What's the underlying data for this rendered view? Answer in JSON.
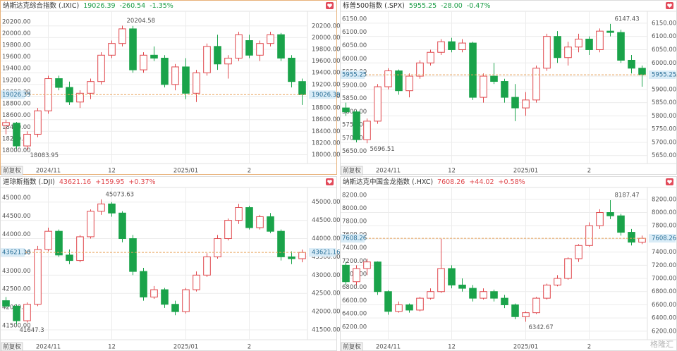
{
  "watermark": "格隆汇",
  "chart_data": [
    {
      "type": "candlestick",
      "title": "纳斯达克综合指数 (.IXIC)",
      "last_price": 19026.39,
      "change": "-260.54",
      "change_pct": "-1.35%",
      "quote_color": "#1a9c45",
      "adjust_label": "前复权",
      "up_color": "#e0474c",
      "down_color": "#1aa34a",
      "last_line_color": "#e8a25a",
      "max": 20204.58,
      "min": 18083.95,
      "categories": [
        null,
        null,
        null,
        null,
        "2024/11",
        null,
        null,
        null,
        null,
        null,
        "12",
        null,
        null,
        null,
        null,
        null,
        null,
        "2025/01",
        null,
        null,
        null,
        null,
        null,
        "2",
        null,
        null,
        null,
        null,
        null
      ],
      "open": [
        18500,
        18540,
        18150,
        18350,
        18750,
        19300,
        19150,
        18900,
        19050,
        19250,
        19700,
        19900,
        20150,
        19450,
        19700,
        19650,
        19200,
        19500,
        19050,
        19400,
        19850,
        19550,
        19650,
        19950,
        19700,
        19900,
        20050,
        19650,
        19250
      ],
      "high": [
        18600,
        18560,
        18400,
        18800,
        19350,
        19350,
        19250,
        19100,
        19300,
        19750,
        19950,
        20204.58,
        20200,
        19750,
        19850,
        19700,
        19550,
        19650,
        19450,
        19900,
        20050,
        19700,
        20100,
        20050,
        19950,
        20100,
        20080,
        19700,
        19300
      ],
      "low": [
        18350,
        18100,
        18083.95,
        18300,
        18700,
        19100,
        18850,
        18800,
        18950,
        19200,
        19650,
        19850,
        19400,
        19400,
        19600,
        19150,
        19100,
        18950,
        18900,
        19350,
        19450,
        19300,
        19600,
        19650,
        19600,
        19850,
        19600,
        19150,
        18850
      ],
      "close": [
        18550,
        18150,
        18350,
        18750,
        19300,
        19150,
        18900,
        19050,
        19250,
        19700,
        19900,
        20150,
        19450,
        19700,
        19650,
        19200,
        19500,
        19050,
        19400,
        19850,
        19550,
        19650,
        20050,
        19700,
        19900,
        20050,
        19650,
        19250,
        19026.39
      ],
      "ylim": [
        17850,
        20450
      ],
      "grid": true,
      "yticks": [
        {
          "value": 18000,
          "label": "18000.00"
        },
        {
          "value": 18200,
          "label": "18200.00"
        },
        {
          "value": 18400,
          "label": "18400.00"
        },
        {
          "value": 18600,
          "label": "18600.00"
        },
        {
          "value": 18800,
          "label": "18800.00"
        },
        {
          "value": 19000,
          "label": "19000.00"
        },
        {
          "value": 19200,
          "label": "19200.00"
        },
        {
          "value": 19400,
          "label": "19400.00"
        },
        {
          "value": 19600,
          "label": "19600.00"
        },
        {
          "value": 19800,
          "label": "19800.00"
        },
        {
          "value": 20000,
          "label": "20000.00"
        },
        {
          "value": 20200,
          "label": "20200.00"
        }
      ]
    },
    {
      "type": "candlestick",
      "title": "标普500指数 (.SPX)",
      "last_price": 5955.25,
      "change": "-28.00",
      "change_pct": "-0.47%",
      "quote_color": "#1a9c45",
      "adjust_label": "前复权",
      "up_color": "#e0474c",
      "down_color": "#1aa34a",
      "last_line_color": "#e8a25a",
      "max": 6147.43,
      "min": 5696.51,
      "categories": [
        null,
        null,
        null,
        null,
        "2024/11",
        null,
        null,
        null,
        null,
        null,
        "12",
        null,
        null,
        null,
        null,
        null,
        null,
        "2025/01",
        null,
        null,
        null,
        null,
        null,
        "2",
        null,
        null,
        null,
        null,
        null
      ],
      "open": [
        5830,
        5815,
        5710,
        5780,
        5910,
        5970,
        5895,
        5950,
        6000,
        6040,
        6080,
        6050,
        6075,
        5870,
        5950,
        5930,
        5870,
        5830,
        5860,
        5980,
        6100,
        6020,
        6060,
        6090,
        6050,
        6120,
        6115,
        6010,
        5980
      ],
      "high": [
        5850,
        5820,
        5790,
        5920,
        5980,
        5975,
        5960,
        6010,
        6050,
        6090,
        6095,
        6090,
        6080,
        5960,
        6000,
        5940,
        5920,
        5890,
        5990,
        6110,
        6120,
        6080,
        6110,
        6100,
        6130,
        6147.43,
        6125,
        6030,
        5990
      ],
      "low": [
        5800,
        5700,
        5696.51,
        5770,
        5900,
        5880,
        5870,
        5940,
        5990,
        6030,
        6040,
        6040,
        5860,
        5850,
        5920,
        5850,
        5780,
        5800,
        5850,
        5970,
        6000,
        5990,
        6040,
        6030,
        6040,
        6100,
        6000,
        5960,
        5910
      ],
      "close": [
        5815,
        5710,
        5780,
        5910,
        5970,
        5895,
        5950,
        6000,
        6040,
        6080,
        6050,
        6075,
        5870,
        5950,
        5930,
        5870,
        5830,
        5860,
        5980,
        6100,
        6020,
        6060,
        6090,
        6050,
        6120,
        6115,
        6010,
        5980,
        5955.25
      ],
      "ylim": [
        5620,
        6195
      ],
      "grid": true,
      "yticks": [
        {
          "value": 5650,
          "label": "5650.00"
        },
        {
          "value": 5700,
          "label": "5700.00"
        },
        {
          "value": 5750,
          "label": "5750.00"
        },
        {
          "value": 5800,
          "label": "5800.00"
        },
        {
          "value": 5850,
          "label": "5850.00"
        },
        {
          "value": 5900,
          "label": "5900.00"
        },
        {
          "value": 5950,
          "label": "5950.00"
        },
        {
          "value": 6000,
          "label": "6000.00"
        },
        {
          "value": 6050,
          "label": "6050.00"
        },
        {
          "value": 6100,
          "label": "6100.00"
        },
        {
          "value": 6150,
          "label": "6150.00"
        }
      ]
    },
    {
      "type": "candlestick",
      "title": "道琼斯指数 (.DJI)",
      "last_price": 43621.16,
      "change": "+159.95",
      "change_pct": "+0.37%",
      "quote_color": "#e0474c",
      "adjust_label": "前复权",
      "up_color": "#e0474c",
      "down_color": "#1aa34a",
      "last_line_color": "#e8a25a",
      "max": 45073.63,
      "min": 41647.3,
      "categories": [
        null,
        null,
        null,
        null,
        "2024/11",
        null,
        null,
        null,
        null,
        null,
        "12",
        null,
        null,
        null,
        null,
        null,
        null,
        "2025/01",
        null,
        null,
        null,
        null,
        null,
        "2",
        null,
        null,
        null,
        null,
        null
      ],
      "open": [
        42300,
        42150,
        41750,
        42200,
        43700,
        44200,
        43550,
        43400,
        44050,
        44750,
        44950,
        44700,
        44000,
        43100,
        42400,
        42600,
        42200,
        42000,
        42600,
        43000,
        43500,
        44000,
        44500,
        44850,
        44300,
        44600,
        44200,
        43500,
        43450
      ],
      "high": [
        42400,
        42200,
        42250,
        43800,
        44300,
        44250,
        43700,
        44100,
        44800,
        45073.63,
        45000,
        44750,
        44100,
        43200,
        42700,
        42650,
        42300,
        42650,
        43100,
        43600,
        44100,
        44550,
        44950,
        44900,
        44650,
        44700,
        44250,
        43650,
        43700
      ],
      "low": [
        42100,
        41647.3,
        41700,
        42150,
        43650,
        43500,
        43300,
        43350,
        44000,
        44650,
        44600,
        43900,
        43000,
        42300,
        42350,
        42100,
        41900,
        41950,
        42550,
        42950,
        43450,
        43950,
        44400,
        44250,
        44250,
        44150,
        43400,
        43300,
        43350
      ],
      "close": [
        42150,
        41750,
        42200,
        43700,
        44200,
        43550,
        43400,
        44050,
        44750,
        44950,
        44700,
        44000,
        43100,
        42400,
        42600,
        42200,
        42000,
        42600,
        43000,
        43500,
        44000,
        44500,
        44850,
        44300,
        44600,
        44200,
        43500,
        43450,
        43621.16
      ],
      "ylim": [
        41230,
        45400
      ],
      "grid": true,
      "yticks": [
        {
          "value": 41500,
          "label": "41500.00"
        },
        {
          "value": 42000,
          "label": "42000.00"
        },
        {
          "value": 42500,
          "label": "42500.00"
        },
        {
          "value": 43000,
          "label": "43000.00"
        },
        {
          "value": 43500,
          "label": "43500.00"
        },
        {
          "value": 44000,
          "label": "44000.00"
        },
        {
          "value": 44500,
          "label": "44500.00"
        },
        {
          "value": 45000,
          "label": "45000.00"
        }
      ]
    },
    {
      "type": "candlestick",
      "title": "纳斯达克中国金龙指数 (.HXC)",
      "last_price": 7608.26,
      "change": "+44.02",
      "change_pct": "+0.58%",
      "quote_color": "#e0474c",
      "adjust_label": "前复权",
      "up_color": "#e0474c",
      "down_color": "#1aa34a",
      "last_line_color": "#e8a25a",
      "max": 8187.47,
      "min": 6342.67,
      "categories": [
        null,
        null,
        null,
        null,
        "2024/11",
        null,
        null,
        null,
        null,
        null,
        "12",
        null,
        null,
        null,
        null,
        null,
        null,
        "2025/01",
        null,
        null,
        null,
        null,
        null,
        "2",
        null,
        null,
        null,
        null,
        null
      ],
      "open": [
        7200,
        6950,
        7150,
        7250,
        6800,
        6500,
        6600,
        6520,
        6700,
        6800,
        7150,
        6900,
        6850,
        6700,
        6800,
        6700,
        6600,
        6420,
        6480,
        6700,
        6900,
        7000,
        7300,
        7500,
        7800,
        8000,
        7950,
        7700,
        7550
      ],
      "high": [
        7250,
        7200,
        7300,
        7260,
        6820,
        6650,
        6620,
        6720,
        6850,
        7600,
        7200,
        7000,
        6900,
        6850,
        6830,
        6750,
        6620,
        6500,
        6720,
        6920,
        7050,
        7320,
        7520,
        7850,
        8050,
        8187.47,
        7980,
        7750,
        7650
      ],
      "low": [
        6900,
        6900,
        7050,
        6750,
        6450,
        6480,
        6480,
        6500,
        6680,
        6780,
        6850,
        6800,
        6650,
        6680,
        6650,
        6550,
        6380,
        6342.67,
        6460,
        6680,
        6880,
        6980,
        7250,
        7480,
        7750,
        7900,
        7650,
        7500,
        7520
      ],
      "close": [
        6950,
        7150,
        7250,
        6800,
        6500,
        6600,
        6520,
        6700,
        6800,
        7150,
        6900,
        6850,
        6700,
        6800,
        6700,
        6600,
        6420,
        6480,
        6700,
        6900,
        7000,
        7300,
        7500,
        7800,
        8000,
        7950,
        7700,
        7550,
        7608.26
      ],
      "ylim": [
        6070,
        8380
      ],
      "grid": true,
      "yticks": [
        {
          "value": 6200,
          "label": "6200.00"
        },
        {
          "value": 6400,
          "label": "6400.00"
        },
        {
          "value": 6600,
          "label": "6600.00"
        },
        {
          "value": 6800,
          "label": "6800.00"
        },
        {
          "value": 7000,
          "label": "7000.00"
        },
        {
          "value": 7200,
          "label": "7200.00"
        },
        {
          "value": 7400,
          "label": "7400.00"
        },
        {
          "value": 7600,
          "label": "7600.00"
        },
        {
          "value": 7800,
          "label": "7800.00"
        },
        {
          "value": 8000,
          "label": "8000.00"
        },
        {
          "value": 8200,
          "label": "8200.00"
        }
      ]
    }
  ]
}
